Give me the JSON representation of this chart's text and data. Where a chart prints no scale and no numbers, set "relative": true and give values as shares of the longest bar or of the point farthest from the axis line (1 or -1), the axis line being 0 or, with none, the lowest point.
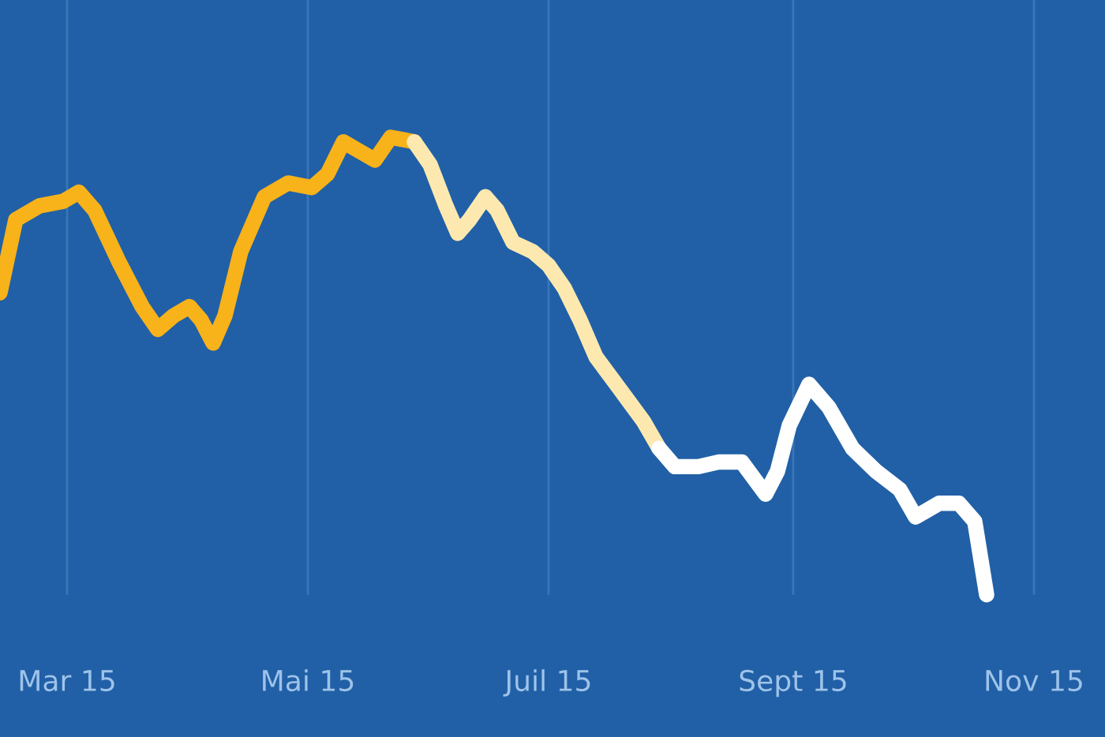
{
  "chart_data": {
    "type": "line",
    "relative": true,
    "grid": "x",
    "legend": false,
    "marker": "none",
    "line_style": "solid",
    "xlim": [
      "2015-02-12",
      "2015-11-19"
    ],
    "xticks": [
      {
        "value": "2015-03-01",
        "label": "Mar 15"
      },
      {
        "value": "2015-05-01",
        "label": "Mai 15"
      },
      {
        "value": "2015-07-01",
        "label": "Juil 15"
      },
      {
        "value": "2015-09-01",
        "label": "Sept 15"
      },
      {
        "value": "2015-11-01",
        "label": "Nov 15"
      }
    ],
    "series": [
      {
        "color": "#f8b21a",
        "x": [
          "2015-02-12",
          "2015-02-16",
          "2015-02-22",
          "2015-02-28",
          "2015-03-04",
          "2015-03-08",
          "2015-03-14",
          "2015-03-20",
          "2015-03-24",
          "2015-03-28",
          "2015-04-01",
          "2015-04-04",
          "2015-04-07",
          "2015-04-10",
          "2015-04-14",
          "2015-04-20",
          "2015-04-26",
          "2015-05-02",
          "2015-05-06",
          "2015-05-10",
          "2015-05-14",
          "2015-05-18",
          "2015-05-22",
          "2015-05-28"
        ],
        "values": [
          0.66,
          0.82,
          0.85,
          0.86,
          0.88,
          0.84,
          0.73,
          0.63,
          0.58,
          0.61,
          0.63,
          0.6,
          0.55,
          0.61,
          0.75,
          0.87,
          0.9,
          0.89,
          0.92,
          0.99,
          0.97,
          0.95,
          1.0,
          0.99
        ]
      },
      {
        "color": "#fde9b0",
        "x": [
          "2015-05-28",
          "2015-06-01",
          "2015-06-05",
          "2015-06-08",
          "2015-06-11",
          "2015-06-15",
          "2015-06-18",
          "2015-06-22",
          "2015-06-27",
          "2015-07-01",
          "2015-07-05",
          "2015-07-09",
          "2015-07-13",
          "2015-07-19",
          "2015-07-25",
          "2015-07-29"
        ],
        "values": [
          0.99,
          0.94,
          0.85,
          0.79,
          0.82,
          0.87,
          0.84,
          0.77,
          0.75,
          0.72,
          0.67,
          0.6,
          0.52,
          0.45,
          0.38,
          0.32
        ]
      },
      {
        "color": "#ffffff",
        "x": [
          "2015-07-29",
          "2015-08-02",
          "2015-08-08",
          "2015-08-13",
          "2015-08-19",
          "2015-08-25",
          "2015-08-28",
          "2015-08-31",
          "2015-09-05",
          "2015-09-10",
          "2015-09-16",
          "2015-09-22",
          "2015-09-28",
          "2015-10-02",
          "2015-10-08",
          "2015-10-13",
          "2015-10-17",
          "2015-10-20"
        ],
        "values": [
          0.32,
          0.28,
          0.28,
          0.29,
          0.29,
          0.22,
          0.27,
          0.37,
          0.46,
          0.41,
          0.32,
          0.27,
          0.23,
          0.17,
          0.2,
          0.2,
          0.16,
          0.0
        ]
      }
    ]
  }
}
